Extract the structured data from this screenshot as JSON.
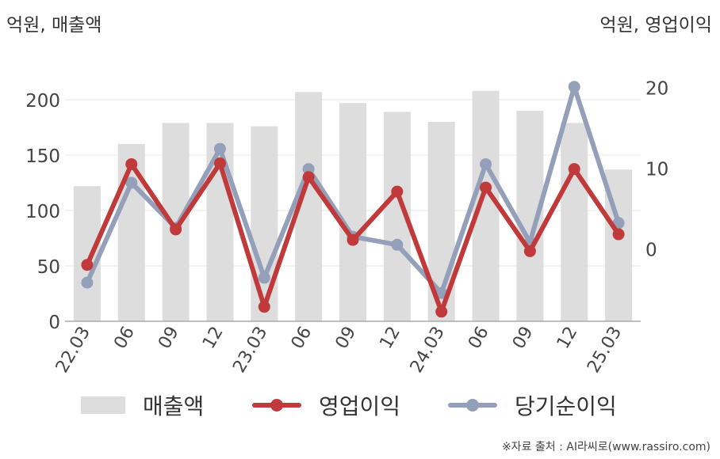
{
  "left_axis_unit": "억원, 매출액",
  "right_axis_unit": "억원, 영업이익",
  "source": "※자료 출처 : AI라씨로(www.rassiro.com)",
  "legend": {
    "revenue": "매출액",
    "operating": "영업이익",
    "net": "당기순이익"
  },
  "colors": {
    "bar": "#dddddd",
    "operating": "#c0393b",
    "net": "#94a0b9",
    "grid": "#e8e8e8",
    "axis": "#aaaaaa"
  },
  "chart_data": {
    "type": "bar+line",
    "categories": [
      "22.03",
      "06",
      "09",
      "12",
      "23.03",
      "06",
      "09",
      "12",
      "24.03",
      "06",
      "09",
      "12",
      "25.03"
    ],
    "left_axis": {
      "ylim": [
        0,
        240
      ],
      "ticks": [
        0,
        50,
        100,
        150,
        200
      ]
    },
    "right_axis": {
      "ylim": [
        -9,
        24
      ],
      "ticks": [
        0,
        10,
        20
      ]
    },
    "series": [
      {
        "name": "매출액",
        "type": "bar",
        "axis": "left",
        "values": [
          122,
          160,
          179,
          179,
          176,
          207,
          197,
          189,
          180,
          208,
          190,
          179,
          137
        ]
      },
      {
        "name": "영업이익",
        "type": "line",
        "axis": "right",
        "values": [
          -2.0,
          10.5,
          2.4,
          10.6,
          -7.2,
          8.9,
          1.1,
          7.1,
          -7.8,
          7.6,
          -0.3,
          9.9,
          1.8
        ]
      },
      {
        "name": "당기순이익",
        "type": "line",
        "axis": "right",
        "values": [
          -4.2,
          8.2,
          2.6,
          12.4,
          -3.6,
          9.9,
          1.5,
          0.5,
          -5.5,
          10.5,
          0.8,
          20.1,
          3.2
        ]
      }
    ]
  }
}
